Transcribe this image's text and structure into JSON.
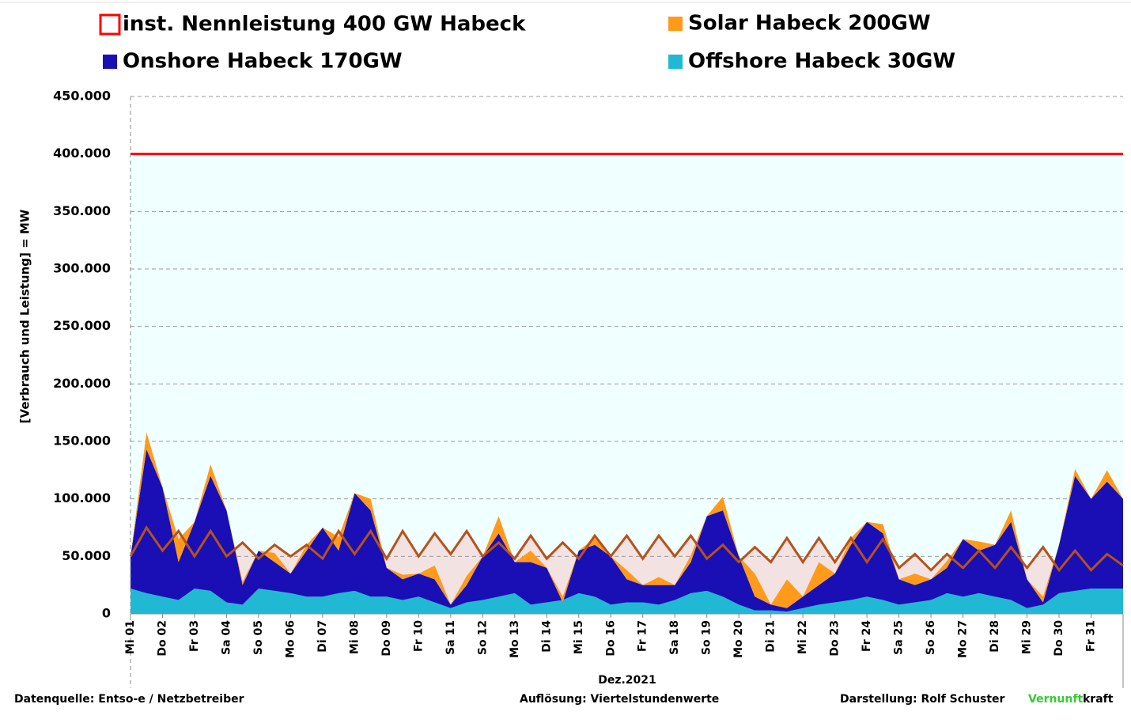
{
  "chart_data": {
    "type": "stacked-area",
    "y_label": "[Verbrauch und Leistung] =  MW",
    "x_label": "Dez.2021",
    "x": [
      0,
      0.5,
      1,
      1.5,
      2,
      2.5,
      3,
      3.5,
      4,
      4.5,
      5,
      5.5,
      6,
      6.5,
      7,
      7.5,
      8,
      8.5,
      9,
      9.5,
      10,
      10.5,
      11,
      11.5,
      12,
      12.5,
      13,
      13.5,
      14,
      14.5,
      15,
      15.5,
      16,
      16.5,
      17,
      17.5,
      18,
      18.5,
      19,
      19.5,
      20,
      20.5,
      21,
      21.5,
      22,
      22.5,
      23,
      23.5,
      24,
      24.5,
      25,
      25.5,
      26,
      26.5,
      27,
      27.5,
      28,
      28.5,
      29,
      29.5,
      30,
      30.5,
      31
    ],
    "xlim": [
      0,
      31
    ],
    "xticks": [
      {
        "value": 0,
        "label": "Mi 01"
      },
      {
        "value": 1,
        "label": "Do 02"
      },
      {
        "value": 2,
        "label": "Fr 03"
      },
      {
        "value": 3,
        "label": "Sa 04"
      },
      {
        "value": 4,
        "label": "So 05"
      },
      {
        "value": 5,
        "label": "Mo 06"
      },
      {
        "value": 6,
        "label": "Di 07"
      },
      {
        "value": 7,
        "label": "Mi 08"
      },
      {
        "value": 8,
        "label": "Do 09"
      },
      {
        "value": 9,
        "label": "Fr 10"
      },
      {
        "value": 10,
        "label": "Sa 11"
      },
      {
        "value": 11,
        "label": "So 12"
      },
      {
        "value": 12,
        "label": "Mo 13"
      },
      {
        "value": 13,
        "label": "Di 14"
      },
      {
        "value": 14,
        "label": "Mi 15"
      },
      {
        "value": 15,
        "label": "Do 16"
      },
      {
        "value": 16,
        "label": "Fr 17"
      },
      {
        "value": 17,
        "label": "Sa 18"
      },
      {
        "value": 18,
        "label": "So 19"
      },
      {
        "value": 19,
        "label": "Mo 20"
      },
      {
        "value": 20,
        "label": "Di 21"
      },
      {
        "value": 21,
        "label": "Mi 22"
      },
      {
        "value": 22,
        "label": "Do 23"
      },
      {
        "value": 23,
        "label": "Fr 24"
      },
      {
        "value": 24,
        "label": "Sa 25"
      },
      {
        "value": 25,
        "label": "So 26"
      },
      {
        "value": 26,
        "label": "Mo 27"
      },
      {
        "value": 27,
        "label": "Di 28"
      },
      {
        "value": 28,
        "label": "Mi 29"
      },
      {
        "value": 29,
        "label": "Do 30"
      },
      {
        "value": 30,
        "label": "Fr 31"
      }
    ],
    "ylim": [
      0,
      450000
    ],
    "yticks": [
      0,
      {
        "value": 50000,
        "label": "50.000"
      },
      {
        "value": 100000,
        "label": "100.000"
      },
      {
        "value": 150000,
        "label": "150.000"
      },
      {
        "value": 200000,
        "label": "200.000"
      },
      {
        "value": 250000,
        "label": "250.000"
      },
      {
        "value": 300000,
        "label": "300.000"
      },
      {
        "value": 350000,
        "label": "350.000"
      },
      {
        "value": 400000,
        "label": "400.000"
      },
      {
        "value": 450000,
        "label": "450.000"
      }
    ],
    "grid": true,
    "capacity": {
      "name": "inst. Nennleistung 400 GW Habeck",
      "color": "#ff0000",
      "fill": "#f0ffff",
      "value": 400000
    },
    "load": {
      "color": "#b5521b",
      "fill": "#f2e2e2",
      "values": [
        50000,
        75000,
        55000,
        72000,
        50000,
        72000,
        50000,
        62000,
        48000,
        60000,
        50000,
        60000,
        48000,
        72000,
        52000,
        72000,
        48000,
        72000,
        50000,
        70000,
        52000,
        72000,
        50000,
        62000,
        48000,
        68000,
        48000,
        62000,
        48000,
        68000,
        50000,
        68000,
        48000,
        68000,
        50000,
        68000,
        48000,
        60000,
        45000,
        58000,
        45000,
        66000,
        45000,
        66000,
        45000,
        66000,
        45000,
        65000,
        40000,
        52000,
        38000,
        52000,
        40000,
        55000,
        40000,
        58000,
        40000,
        58000,
        38000,
        55000,
        38000,
        52000,
        42000
      ]
    },
    "series": [
      {
        "name": "Offshore Habeck 30GW",
        "color": "#21b8d4",
        "values": [
          22000,
          18000,
          15000,
          12000,
          22000,
          20000,
          10000,
          8000,
          22000,
          20000,
          18000,
          15000,
          15000,
          18000,
          20000,
          15000,
          15000,
          12000,
          15000,
          10000,
          5000,
          10000,
          12000,
          15000,
          18000,
          8000,
          10000,
          12000,
          18000,
          15000,
          8000,
          10000,
          10000,
          8000,
          12000,
          18000,
          20000,
          15000,
          8000,
          3000,
          3000,
          2000,
          5000,
          8000,
          10000,
          12000,
          15000,
          12000,
          8000,
          10000,
          12000,
          18000,
          15000,
          18000,
          15000,
          12000,
          5000,
          8000,
          18000,
          20000,
          22000,
          22000,
          22000
        ]
      },
      {
        "name": "Onshore Habeck 170GW",
        "color": "#1a0fb4",
        "values": [
          28000,
          125000,
          95000,
          33000,
          58000,
          100000,
          80000,
          17000,
          33000,
          25000,
          17000,
          40000,
          60000,
          37000,
          85000,
          75000,
          25000,
          18000,
          20000,
          20000,
          3000,
          15000,
          38000,
          55000,
          27000,
          37000,
          30000,
          -2000,
          37000,
          45000,
          42000,
          20000,
          15000,
          17000,
          13000,
          27000,
          65000,
          75000,
          42000,
          12000,
          5000,
          3000,
          10000,
          17000,
          25000,
          48000,
          65000,
          58000,
          22000,
          15000,
          18000,
          22000,
          50000,
          37000,
          45000,
          68000,
          25000,
          2000,
          42000,
          100000,
          78000,
          93000,
          78000
        ]
      },
      {
        "name": "Solar Habeck 200GW",
        "color": "#ff9a1a",
        "values": [
          0,
          15000,
          0,
          20000,
          0,
          10000,
          0,
          3000,
          0,
          8000,
          0,
          5000,
          0,
          12000,
          0,
          10000,
          0,
          4000,
          0,
          12000,
          0,
          8000,
          0,
          15000,
          0,
          10000,
          0,
          5000,
          0,
          6000,
          0,
          8000,
          0,
          7000,
          0,
          6000,
          0,
          12000,
          0,
          20000,
          0,
          25000,
          0,
          20000,
          0,
          6000,
          0,
          8000,
          0,
          10000,
          0,
          6000,
          0,
          8000,
          0,
          10000,
          0,
          5000,
          0,
          6000,
          0,
          10000,
          0
        ]
      }
    ],
    "footer": {
      "source": "Datenquelle: Entso-e  / Netzbetreiber",
      "resolution": "Auflösung: Viertelstundenwerte",
      "author": "Darstellung:  Rolf Schuster",
      "brand_green": "Vernunft",
      "brand_black": "kraft"
    }
  }
}
